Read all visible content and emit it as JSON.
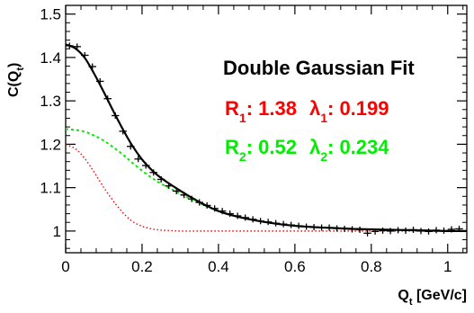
{
  "chart_data": {
    "type": "line",
    "title": "",
    "xlabel": {
      "main": "Q",
      "sub": "t",
      "rest": " [GeV/c]"
    },
    "ylabel": {
      "main": "C(Q",
      "sub": "t",
      "rest": ")"
    },
    "xlim": [
      0,
      1.05
    ],
    "ylim": [
      0.95,
      1.52
    ],
    "x_ticks": [
      {
        "value": 0,
        "label": "0"
      },
      {
        "value": 0.2,
        "label": "0.2"
      },
      {
        "value": 0.4,
        "label": "0.4"
      },
      {
        "value": 0.6,
        "label": "0.6"
      },
      {
        "value": 0.8,
        "label": "0.8"
      },
      {
        "value": 1.0,
        "label": "1"
      }
    ],
    "y_ticks": [
      {
        "value": 1.0,
        "label": "1"
      },
      {
        "value": 1.1,
        "label": "1.1"
      },
      {
        "value": 1.2,
        "label": "1.2"
      },
      {
        "value": 1.3,
        "label": "1.3"
      },
      {
        "value": 1.4,
        "label": "1.4"
      },
      {
        "value": 1.5,
        "label": "1.5"
      }
    ],
    "annotation": {
      "title": "Double Gaussian Fit",
      "line1": {
        "color": "#ff0000",
        "r_label": "R",
        "r_sub": "1",
        "r_value": ":  1.38",
        "l_label": "λ",
        "l_sub": "1",
        "l_value": ": 0.199"
      },
      "line2": {
        "color": "#00ee00",
        "r_label": "R",
        "r_sub": "2",
        "r_value": ":  0.52",
        "l_label": "λ",
        "l_sub": "2",
        "l_value": ": 0.234"
      }
    },
    "points": {
      "x": [
        0.01,
        0.03,
        0.05,
        0.07,
        0.09,
        0.11,
        0.13,
        0.15,
        0.17,
        0.19,
        0.21,
        0.23,
        0.25,
        0.27,
        0.29,
        0.31,
        0.33,
        0.35,
        0.37,
        0.39,
        0.41,
        0.43,
        0.45,
        0.47,
        0.49,
        0.51,
        0.53,
        0.55,
        0.57,
        0.59,
        0.61,
        0.63,
        0.65,
        0.67,
        0.69,
        0.71,
        0.73,
        0.75,
        0.77,
        0.79,
        0.81,
        0.83,
        0.85,
        0.87,
        0.89,
        0.91,
        0.93,
        0.95,
        0.97,
        0.99,
        1.01,
        1.03
      ],
      "y": [
        1.427,
        1.425,
        1.405,
        1.379,
        1.345,
        1.305,
        1.266,
        1.23,
        1.195,
        1.166,
        1.151,
        1.135,
        1.119,
        1.104,
        1.092,
        1.083,
        1.074,
        1.066,
        1.059,
        1.052,
        1.046,
        1.04,
        1.035,
        1.031,
        1.027,
        1.023,
        1.021,
        1.018,
        1.016,
        1.014,
        1.012,
        1.01,
        1.009,
        1.008,
        1.008,
        1.006,
        1.005,
        1.004,
        1.003,
        0.995,
        0.999,
        1.001,
        1.0,
        1.002,
        1.001,
        1.003,
        1.0,
        0.999,
        1.002,
        1.001,
        1.004,
        1.005
      ]
    },
    "series": [
      {
        "style": "solid",
        "color": "#000000",
        "x": [
          0.0,
          0.025,
          0.05,
          0.075,
          0.1,
          0.125,
          0.15,
          0.175,
          0.2,
          0.225,
          0.25,
          0.3,
          0.35,
          0.4,
          0.45,
          0.5,
          0.55,
          0.6,
          0.65,
          0.7,
          0.75,
          0.8,
          0.85,
          0.9,
          0.95,
          1.0,
          1.05
        ],
        "y": [
          1.43,
          1.421,
          1.399,
          1.362,
          1.32,
          1.276,
          1.234,
          1.196,
          1.165,
          1.141,
          1.122,
          1.093,
          1.067,
          1.046,
          1.033,
          1.024,
          1.017,
          1.012,
          1.009,
          1.007,
          1.005,
          1.004,
          1.003,
          1.002,
          1.001,
          1.0,
          1.0
        ]
      },
      {
        "style": "dotted",
        "color": "#00ee00",
        "x": [
          0.0,
          0.025,
          0.05,
          0.075,
          0.1,
          0.125,
          0.15,
          0.175,
          0.2,
          0.225,
          0.25,
          0.3,
          0.35,
          0.4,
          0.45,
          0.5,
          0.55,
          0.6,
          0.65,
          0.7,
          0.75,
          0.8,
          0.85,
          0.9,
          0.95,
          1.0,
          1.05
        ],
        "y": [
          1.235,
          1.233,
          1.229,
          1.22,
          1.208,
          1.193,
          1.176,
          1.157,
          1.139,
          1.123,
          1.109,
          1.086,
          1.064,
          1.046,
          1.033,
          1.024,
          1.017,
          1.012,
          1.009,
          1.007,
          1.005,
          1.004,
          1.003,
          1.002,
          1.001,
          1.0,
          1.0
        ]
      },
      {
        "style": "dotted",
        "color": "#ff0000",
        "x": [
          0.0,
          0.025,
          0.05,
          0.075,
          0.1,
          0.125,
          0.15,
          0.175,
          0.2,
          0.225,
          0.25,
          0.275,
          0.3,
          0.35,
          0.4,
          0.5,
          0.6,
          0.7,
          0.8,
          0.9,
          1.0,
          1.05
        ],
        "y": [
          1.199,
          1.19,
          1.167,
          1.135,
          1.1,
          1.069,
          1.042,
          1.022,
          1.011,
          1.005,
          1.002,
          1.001,
          1.0,
          1.0,
          1.0,
          1.0,
          1.0,
          1.0,
          1.0,
          1.0,
          1.0,
          1.0
        ]
      }
    ]
  }
}
